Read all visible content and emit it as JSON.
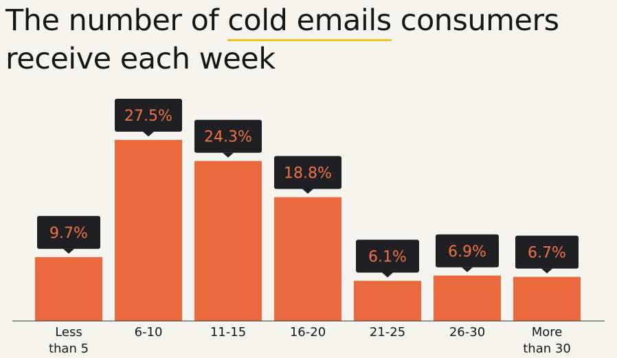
{
  "title": {
    "line1_before": "The number of",
    "line1_highlight": "cold emails",
    "line1_after": "consumers",
    "line2": "receive each week"
  },
  "colors": {
    "background": "#f6f4ef",
    "bar": "#ea693c",
    "label_box": "#1f1f24",
    "label_text": "#ef7443",
    "highlight_underline": "#f2c41a",
    "axis": "#333333"
  },
  "chart_data": {
    "type": "bar",
    "categories": [
      [
        "Less",
        "than 5"
      ],
      [
        "6-10"
      ],
      [
        "11-15"
      ],
      [
        "16-20"
      ],
      [
        "21-25"
      ],
      [
        "26-30"
      ],
      [
        "More",
        "than 30"
      ]
    ],
    "values": [
      9.7,
      27.5,
      24.3,
      18.8,
      6.1,
      6.9,
      6.7
    ],
    "value_labels": [
      "9.7%",
      "27.5%",
      "24.3%",
      "18.8%",
      "6.1%",
      "6.9%",
      "6.7%"
    ],
    "title": "The number of cold emails consumers receive each week",
    "xlabel": "",
    "ylabel": "",
    "ylim": [
      0,
      30
    ],
    "grid": false,
    "legend": "none"
  }
}
